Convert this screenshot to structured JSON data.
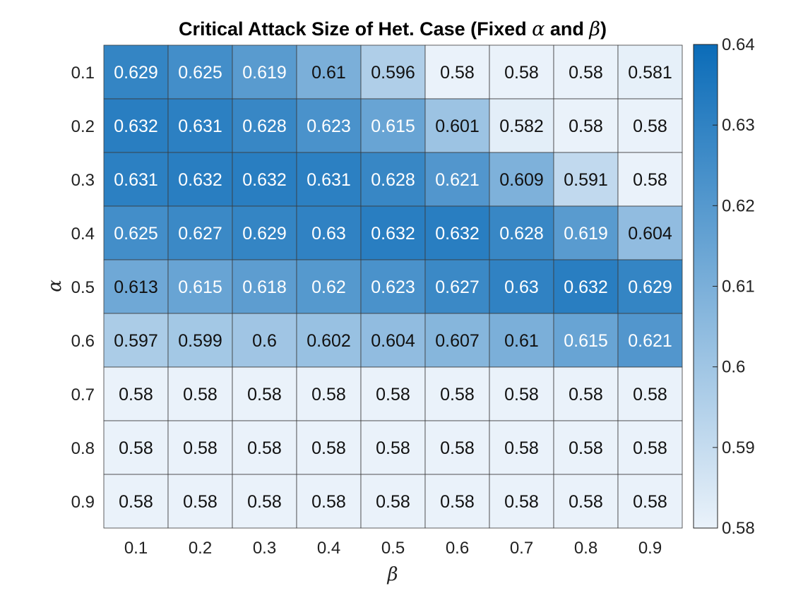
{
  "chart_data": {
    "type": "heatmap",
    "title": {
      "prefix": "Critical Attack Size of Het. Case (Fixed ",
      "sym1": "α",
      "mid": " and ",
      "sym2": "β",
      "suffix": ")"
    },
    "xlabel": "β",
    "ylabel": "α",
    "x_categories": [
      "0.1",
      "0.2",
      "0.3",
      "0.4",
      "0.5",
      "0.6",
      "0.7",
      "0.8",
      "0.9"
    ],
    "y_categories": [
      "0.1",
      "0.2",
      "0.3",
      "0.4",
      "0.5",
      "0.6",
      "0.7",
      "0.8",
      "0.9"
    ],
    "values": [
      [
        0.629,
        0.625,
        0.619,
        0.61,
        0.596,
        0.58,
        0.58,
        0.58,
        0.581
      ],
      [
        0.632,
        0.631,
        0.628,
        0.623,
        0.615,
        0.601,
        0.582,
        0.58,
        0.58
      ],
      [
        0.631,
        0.632,
        0.632,
        0.631,
        0.628,
        0.621,
        0.609,
        0.591,
        0.58
      ],
      [
        0.625,
        0.627,
        0.629,
        0.63,
        0.632,
        0.632,
        0.628,
        0.619,
        0.604
      ],
      [
        0.613,
        0.615,
        0.618,
        0.62,
        0.623,
        0.627,
        0.63,
        0.632,
        0.629
      ],
      [
        0.597,
        0.599,
        0.6,
        0.602,
        0.604,
        0.607,
        0.61,
        0.615,
        0.621
      ],
      [
        0.58,
        0.58,
        0.58,
        0.58,
        0.58,
        0.58,
        0.58,
        0.58,
        0.58
      ],
      [
        0.58,
        0.58,
        0.58,
        0.58,
        0.58,
        0.58,
        0.58,
        0.58,
        0.58
      ],
      [
        0.58,
        0.58,
        0.58,
        0.58,
        0.58,
        0.58,
        0.58,
        0.58,
        0.58
      ]
    ],
    "colorbar": {
      "range": [
        0.58,
        0.64
      ],
      "ticks": [
        "0.58",
        "0.59",
        "0.6",
        "0.61",
        "0.62",
        "0.63",
        "0.64"
      ],
      "color_low": "#eaf2fa",
      "color_high": "#0b6cb8"
    }
  }
}
